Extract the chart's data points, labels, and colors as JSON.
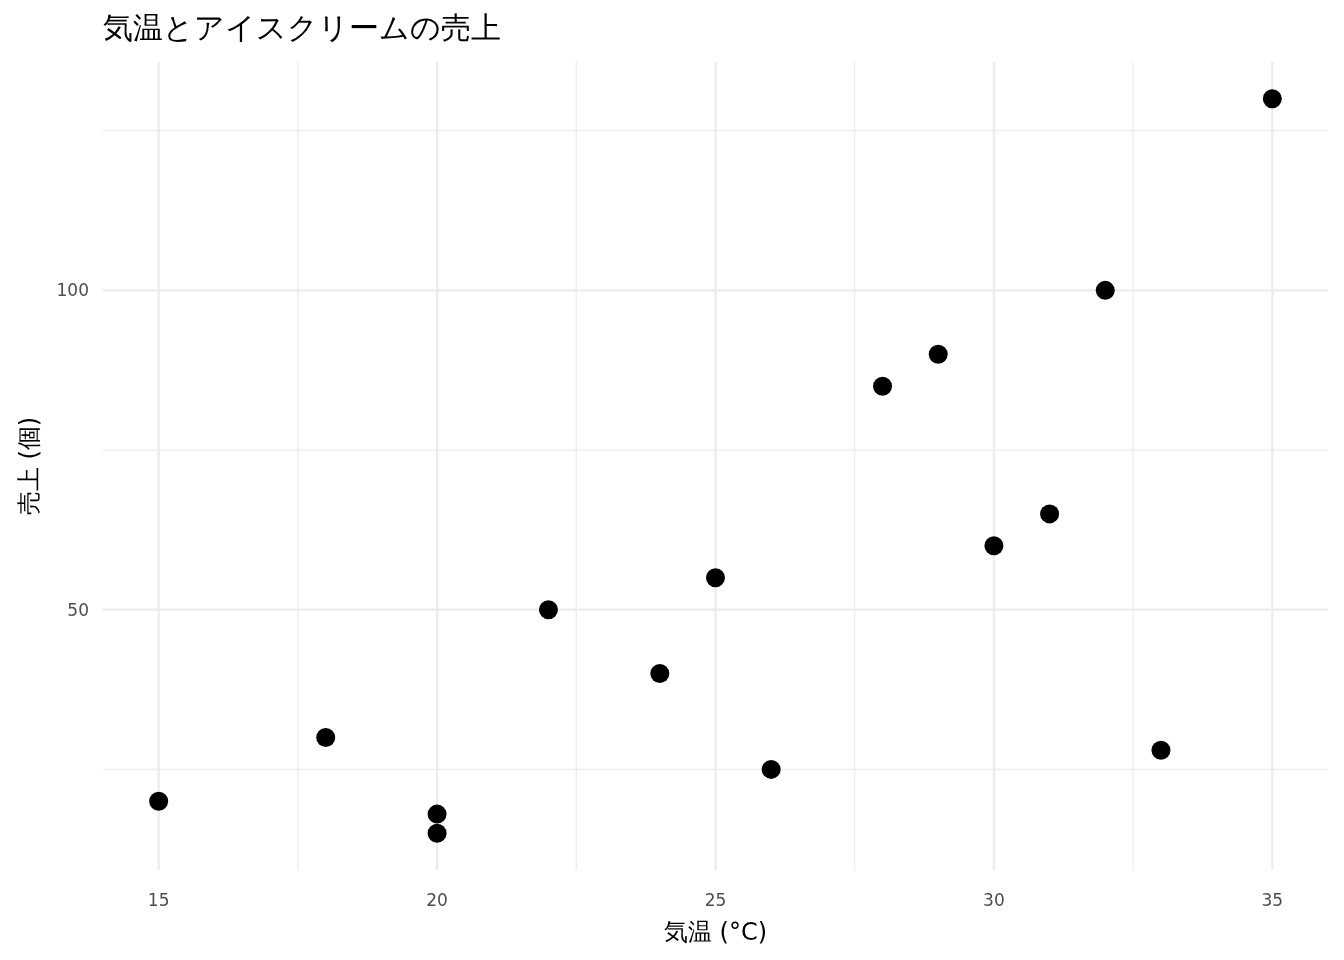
{
  "chart_data": {
    "type": "scatter",
    "title": "気温とアイスクリームの売上",
    "xlabel": "気温 (°C)",
    "ylabel": "売上 (個)",
    "x": [
      15,
      18,
      20,
      20,
      22,
      24,
      25,
      26,
      28,
      29,
      30,
      31,
      32,
      33,
      35
    ],
    "series": [
      {
        "color": "#000000",
        "values": [
          20,
          30,
          18,
          15,
          50,
          40,
          55,
          25,
          85,
          90,
          60,
          65,
          100,
          28,
          130
        ]
      }
    ],
    "xlim": [
      14,
      36
    ],
    "ylim": [
      9.25,
      135.75
    ],
    "xticks": [
      15,
      {
        "value": 17.5,
        "label": null
      },
      20,
      {
        "value": 22.5,
        "label": null
      },
      25,
      {
        "value": 27.5,
        "label": null
      },
      30,
      {
        "value": 32.5,
        "label": null
      },
      35
    ],
    "yticks": [
      {
        "value": 25,
        "label": null
      },
      50,
      {
        "value": 75,
        "label": null
      },
      100,
      {
        "value": 125,
        "label": null
      }
    ],
    "grid": true,
    "marker": "circle"
  }
}
